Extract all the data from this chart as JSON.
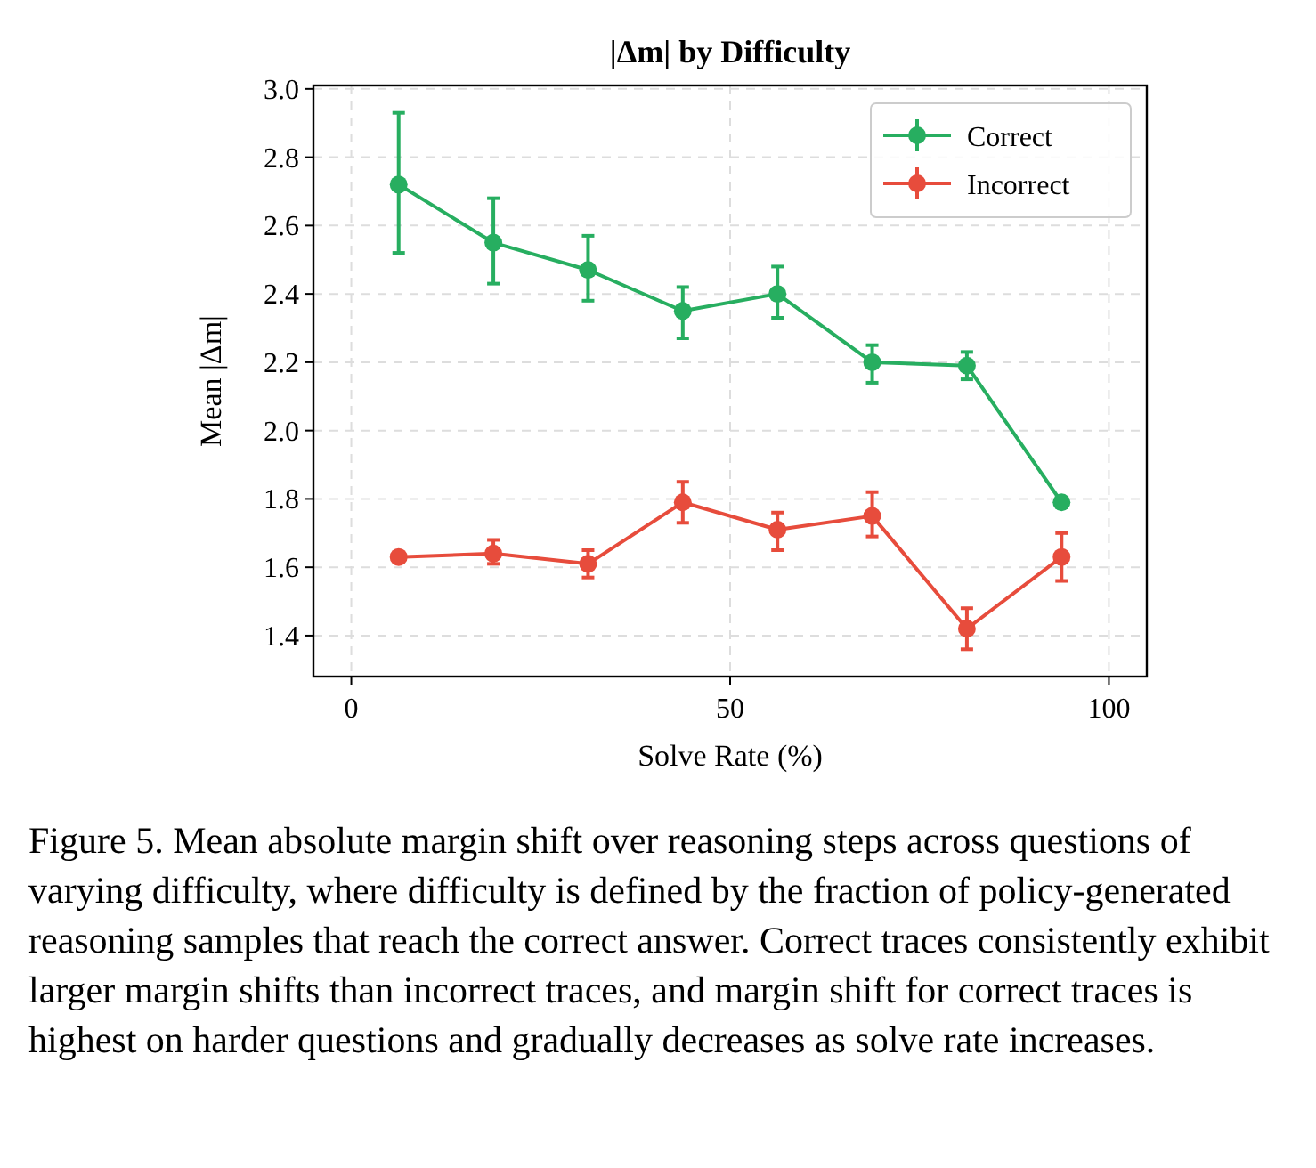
{
  "chart_data": {
    "type": "line",
    "title": "|Δm| by Difficulty",
    "xlabel": "Solve Rate (%)",
    "ylabel": "Mean |Δm|",
    "x": [
      6.25,
      18.75,
      31.25,
      43.75,
      56.25,
      68.75,
      81.25,
      93.75
    ],
    "series": [
      {
        "name": "Correct",
        "color": "#27ae60",
        "values": [
          2.72,
          2.55,
          2.47,
          2.35,
          2.4,
          2.2,
          2.19,
          1.79
        ],
        "errors": [
          [
            2.52,
            2.93
          ],
          [
            2.43,
            2.68
          ],
          [
            2.38,
            2.57
          ],
          [
            2.27,
            2.42
          ],
          [
            2.33,
            2.48
          ],
          [
            2.14,
            2.25
          ],
          [
            2.15,
            2.23
          ],
          null
        ]
      },
      {
        "name": "Incorrect",
        "color": "#e74c3c",
        "values": [
          1.63,
          1.64,
          1.61,
          1.79,
          1.71,
          1.75,
          1.42,
          1.63
        ],
        "errors": [
          null,
          [
            1.61,
            1.68
          ],
          [
            1.57,
            1.65
          ],
          [
            1.73,
            1.85
          ],
          [
            1.65,
            1.76
          ],
          [
            1.69,
            1.82
          ],
          [
            1.36,
            1.48
          ],
          [
            1.56,
            1.7
          ]
        ]
      }
    ],
    "xlim": [
      -5,
      105
    ],
    "xticks": [
      0,
      50,
      100
    ],
    "ylim": [
      1.28,
      3.01
    ],
    "yticks": [
      {
        "value": 1.4,
        "label": "1.4"
      },
      {
        "value": 1.6,
        "label": "1.6"
      },
      {
        "value": 1.8,
        "label": "1.8"
      },
      {
        "value": 2.0,
        "label": "2.0"
      },
      {
        "value": 2.2,
        "label": "2.2"
      },
      {
        "value": 2.4,
        "label": "2.4"
      },
      {
        "value": 2.6,
        "label": "2.6"
      },
      {
        "value": 2.8,
        "label": "2.8"
      },
      {
        "value": 3.0,
        "label": "3.0"
      }
    ],
    "grid": true,
    "legend": "top right",
    "marker": "circle",
    "line_style": "solid",
    "annotations": [
      "Figure 5. Mean absolute margin shift over reasoning steps across questions of varying difficulty, where difficulty is defined by the fraction of policy-generated reasoning samples that reach the correct answer. Correct traces consistently exhibit larger margin shifts than incorrect traces, and margin shift for correct traces is highest on harder questions and gradually decreases as solve rate increases."
    ]
  }
}
